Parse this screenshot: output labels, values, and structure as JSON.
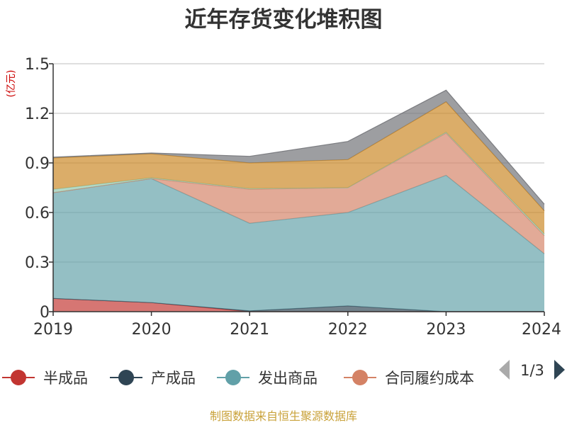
{
  "chart_data": {
    "type": "area",
    "stacked": true,
    "title": "近年存货变化堆积图",
    "unit": "(亿元)",
    "categories": [
      "2019",
      "2020",
      "2021",
      "2022",
      "2023",
      "2024"
    ],
    "ylim": [
      0,
      1.5
    ],
    "yticks": [
      "0",
      "0.3",
      "0.6",
      "0.9",
      "1.2",
      "1.5"
    ],
    "grid": true,
    "series": [
      {
        "name": "半成品",
        "color": "#c23531",
        "values": [
          0.08,
          0.055,
          0.0,
          0.0,
          0.0,
          0.0
        ]
      },
      {
        "name": "产成品",
        "color": "#2f4554",
        "values": [
          0.0,
          0.0,
          0.005,
          0.035,
          0.0,
          0.0
        ]
      },
      {
        "name": "发出商品",
        "color": "#61a0a8",
        "values": [
          0.64,
          0.75,
          0.53,
          0.565,
          0.825,
          0.35
        ]
      },
      {
        "name": "合同履约成本",
        "color": "#d48265",
        "values": [
          0.0,
          0.0,
          0.205,
          0.15,
          0.255,
          0.11
        ]
      },
      {
        "name": "",
        "color": "#91c7ae",
        "values": [
          0.02,
          0.005,
          0.005,
          0.0,
          0.005,
          0.01
        ]
      },
      {
        "name": "",
        "color": "#ca8622",
        "values": [
          0.19,
          0.145,
          0.155,
          0.17,
          0.185,
          0.14
        ]
      },
      {
        "name": "",
        "color": "#6e7074",
        "values": [
          0.005,
          0.005,
          0.04,
          0.11,
          0.07,
          0.04
        ]
      }
    ],
    "legend": {
      "placement": "bottom",
      "visible_items": [
        "半成品",
        "产成品",
        "发出商品",
        "合同履约成本"
      ],
      "page_text": "1/3"
    }
  },
  "footer": {
    "source": "制图数据来自恒生聚源数据库"
  },
  "colors": {
    "text": "#333333",
    "axis": "#333333",
    "grid": "#cccccc",
    "unit": "#cc0000",
    "source": "#c9a23a",
    "pager_inactive": "#aaaaaa",
    "pager_active": "#2f4554"
  }
}
